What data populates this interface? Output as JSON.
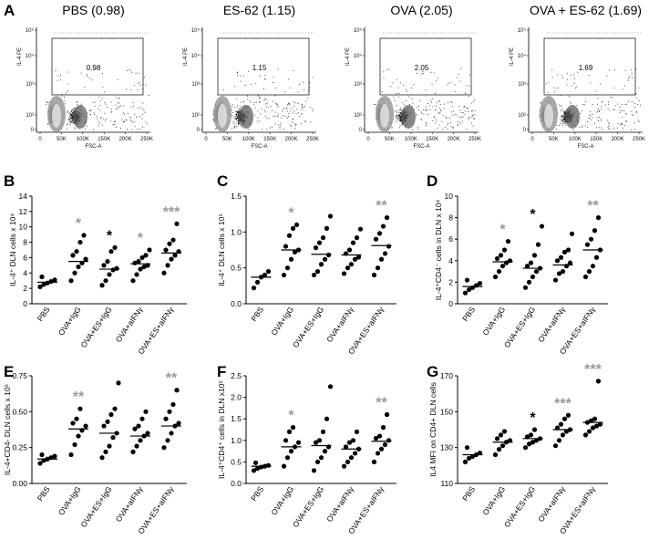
{
  "panel_a": {
    "letter": "A",
    "x_axis_label": "FSC-A",
    "y_axis_label": "IL-4 PE",
    "x_ticks": [
      "0",
      "50K",
      "100K",
      "150K",
      "200K",
      "250K"
    ],
    "y_ticks": [
      "10⁵",
      "10⁴",
      "10³",
      "10²",
      "0"
    ],
    "plots": [
      {
        "title": "PBS (0.98)",
        "gate_value": "0.98"
      },
      {
        "title": "ES-62 (1.15)",
        "gate_value": "1.15"
      },
      {
        "title": "OVA (2.05)",
        "gate_value": "2.05"
      },
      {
        "title": "OVA + ES-62 (1.69)",
        "gate_value": "1.69"
      }
    ]
  },
  "colors": {
    "black_star": "#000000",
    "grey_star": "#9a9a9a",
    "dot": "#000000"
  },
  "chart_data": [
    {
      "type": "scatter",
      "panel": "B",
      "ylabel": "IL-4⁺ DLN cells x 10⁴",
      "ylim": [
        0,
        14
      ],
      "yticks": [
        "0",
        "2",
        "4",
        "6",
        "8",
        "10",
        "12",
        "14"
      ],
      "categories": [
        "PBS",
        "OVA+IgG",
        "OVA+ES+IgG",
        "OVA+aIFNγ",
        "OVA+ES+aIFNγ"
      ],
      "points": [
        [
          2.2,
          2.5,
          2.7,
          2.9,
          3.1,
          3.5
        ],
        [
          3.0,
          4.0,
          4.8,
          5.3,
          5.8,
          6.3,
          6.8,
          8.0,
          8.9
        ],
        [
          2.4,
          3.0,
          3.8,
          4.4,
          4.6,
          5.0,
          5.5,
          6.8,
          7.3
        ],
        [
          3.0,
          3.8,
          4.5,
          4.8,
          5.0,
          5.3,
          5.5,
          6.0,
          6.3,
          7.0
        ],
        [
          4.0,
          5.0,
          5.8,
          6.3,
          6.8,
          7.0,
          7.8,
          8.3,
          10.4
        ]
      ],
      "means": [
        2.8,
        5.5,
        4.5,
        5.2,
        6.6
      ],
      "stars": [
        null,
        {
          "text": "*",
          "color": "grey"
        },
        {
          "text": "*",
          "color": "black"
        },
        {
          "text": "*",
          "color": "grey"
        },
        {
          "text": "***",
          "color": "grey"
        }
      ]
    },
    {
      "type": "scatter",
      "panel": "C",
      "ylabel": "IL-4⁺ DLN cells x 10⁵",
      "ylim": [
        0,
        1.5
      ],
      "yticks": [
        "0.0",
        "0.5",
        "1.0",
        "1.5"
      ],
      "categories": [
        "PBS",
        "OVA+IgG",
        "OVA+ES+IgG",
        "OVA+aIFNγ",
        "OVA+ES+aIFNγ"
      ],
      "points": [
        [
          0.22,
          0.3,
          0.37,
          0.4,
          0.45
        ],
        [
          0.4,
          0.5,
          0.62,
          0.72,
          0.75,
          0.8,
          0.95,
          1.05,
          1.1
        ],
        [
          0.4,
          0.45,
          0.55,
          0.62,
          0.68,
          0.78,
          0.85,
          0.92,
          1.05,
          1.22
        ],
        [
          0.42,
          0.5,
          0.55,
          0.62,
          0.65,
          0.7,
          0.75,
          0.85,
          0.92,
          1.04
        ],
        [
          0.4,
          0.5,
          0.62,
          0.7,
          0.8,
          0.9,
          0.98,
          1.08,
          1.2
        ]
      ],
      "means": [
        0.37,
        0.75,
        0.69,
        0.68,
        0.81
      ],
      "stars": [
        null,
        {
          "text": "*",
          "color": "grey"
        },
        null,
        null,
        {
          "text": "**",
          "color": "grey"
        }
      ]
    },
    {
      "type": "scatter",
      "panel": "D",
      "ylabel": "IL-4⁺CD4⁻ cells in DLN x 10⁴",
      "ylim": [
        0,
        10
      ],
      "yticks": [
        "0",
        "2",
        "4",
        "6",
        "8",
        "10"
      ],
      "categories": [
        "PBS",
        "OVA+IgG",
        "OVA+ES+IgG",
        "OVA+aIFNγ",
        "OVA+ES+aIFNγ"
      ],
      "points": [
        [
          1.0,
          1.3,
          1.5,
          1.7,
          1.9,
          2.2
        ],
        [
          2.5,
          3.0,
          3.5,
          3.8,
          4.0,
          4.2,
          4.5,
          5.0,
          5.8
        ],
        [
          1.5,
          2.0,
          2.5,
          3.0,
          3.3,
          3.5,
          3.8,
          4.5,
          5.5,
          7.2
        ],
        [
          2.2,
          2.8,
          3.0,
          3.5,
          3.8,
          4.0,
          4.3,
          4.8,
          5.0,
          6.5
        ],
        [
          2.5,
          3.0,
          3.5,
          4.3,
          5.0,
          5.5,
          6.0,
          6.8,
          8.0
        ]
      ],
      "means": [
        1.6,
        3.9,
        3.3,
        3.6,
        5.0
      ],
      "stars": [
        null,
        {
          "text": "*",
          "color": "grey"
        },
        {
          "text": "*",
          "color": "black"
        },
        null,
        {
          "text": "**",
          "color": "grey"
        }
      ]
    },
    {
      "type": "scatter",
      "panel": "E",
      "ylabel": "IL-4+CD4- DLN cells x 10⁵",
      "ylim": [
        0,
        0.75
      ],
      "yticks": [
        "0.00",
        "0.25",
        "0.50",
        "0.75"
      ],
      "categories": [
        "PBS",
        "OVA+IgG",
        "OVA+ES+IgG",
        "OVA+aIFNγ",
        "OVA+ES+aIFNγ"
      ],
      "points": [
        [
          0.14,
          0.16,
          0.17,
          0.18,
          0.19,
          0.2
        ],
        [
          0.2,
          0.27,
          0.33,
          0.37,
          0.4,
          0.42,
          0.45,
          0.52
        ],
        [
          0.18,
          0.22,
          0.26,
          0.32,
          0.35,
          0.4,
          0.43,
          0.48,
          0.52,
          0.7
        ],
        [
          0.22,
          0.26,
          0.3,
          0.33,
          0.35,
          0.38,
          0.4,
          0.45,
          0.5
        ],
        [
          0.25,
          0.3,
          0.35,
          0.4,
          0.42,
          0.45,
          0.5,
          0.55,
          0.65
        ]
      ],
      "means": [
        0.17,
        0.38,
        0.35,
        0.33,
        0.4
      ],
      "stars": [
        null,
        {
          "text": "**",
          "color": "grey"
        },
        null,
        null,
        {
          "text": "**",
          "color": "grey"
        }
      ]
    },
    {
      "type": "scatter",
      "panel": "F",
      "ylabel": "IL-4⁺CD4⁺ cells in DLN x10⁵",
      "ylim": [
        0,
        2.5
      ],
      "yticks": [
        "0.0",
        "0.5",
        "1.0",
        "1.5",
        "2.0",
        "2.5"
      ],
      "categories": [
        "PBS",
        "OVA+IgG",
        "OVA+ES+IgG",
        "OVA+aIFNγ",
        "OVA+ES+aIFNγ"
      ],
      "points": [
        [
          0.3,
          0.35,
          0.38,
          0.4,
          0.42,
          0.48
        ],
        [
          0.4,
          0.6,
          0.75,
          0.85,
          0.95,
          1.0,
          1.2,
          1.3
        ],
        [
          0.3,
          0.5,
          0.6,
          0.75,
          0.85,
          0.95,
          1.0,
          1.2,
          1.5,
          2.25
        ],
        [
          0.4,
          0.5,
          0.6,
          0.7,
          0.8,
          0.85,
          0.95,
          1.0,
          1.2
        ],
        [
          0.5,
          0.7,
          0.8,
          0.9,
          1.0,
          1.05,
          1.1,
          1.3,
          1.6
        ]
      ],
      "means": [
        0.4,
        0.85,
        0.88,
        0.8,
        0.98
      ],
      "stars": [
        null,
        {
          "text": "*",
          "color": "grey"
        },
        null,
        null,
        {
          "text": "**",
          "color": "grey"
        }
      ]
    },
    {
      "type": "scatter",
      "panel": "G",
      "ylabel": "IL4 MFI on CD4+ DLN cells",
      "ylim": [
        110,
        170
      ],
      "yticks": [
        "110",
        "130",
        "150",
        "170"
      ],
      "categories": [
        "PBS",
        "OVA+IgG",
        "OVA+ES+IgG",
        "OVA+aIFNγ",
        "OVA+ES+aIFNγ"
      ],
      "points": [
        [
          122,
          124,
          125,
          126,
          127,
          130
        ],
        [
          126,
          129,
          131,
          133,
          134,
          135,
          137,
          139
        ],
        [
          130,
          132,
          133,
          134,
          135,
          136,
          137,
          140
        ],
        [
          131,
          134,
          137,
          139,
          140,
          141,
          143,
          146,
          148
        ],
        [
          137,
          139,
          141,
          142,
          143,
          144,
          145,
          146,
          167
        ]
      ],
      "means": [
        126,
        133,
        135,
        140,
        144
      ],
      "stars": [
        null,
        null,
        {
          "text": "*",
          "color": "black"
        },
        {
          "text": "***",
          "color": "grey"
        },
        {
          "text": "***",
          "color": "grey"
        }
      ]
    }
  ]
}
